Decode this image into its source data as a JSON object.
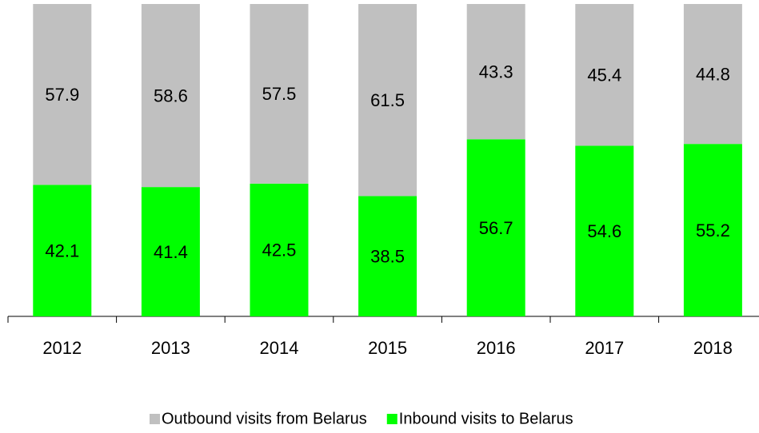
{
  "chart_data": {
    "type": "stacked_bar",
    "categories": [
      "2012",
      "2013",
      "2014",
      "2015",
      "2016",
      "2017",
      "2018"
    ],
    "series": [
      {
        "name": "Outbound visits from Belarus",
        "color": "#c0c0c0",
        "values": [
          57.9,
          58.6,
          57.5,
          61.5,
          43.3,
          45.4,
          44.8
        ]
      },
      {
        "name": "Inbound visits to Belarus",
        "color": "#00ff00",
        "values": [
          42.1,
          41.4,
          42.5,
          38.5,
          56.7,
          54.6,
          55.2
        ]
      }
    ],
    "ylim": [
      0,
      100
    ],
    "legend": "bottom"
  }
}
